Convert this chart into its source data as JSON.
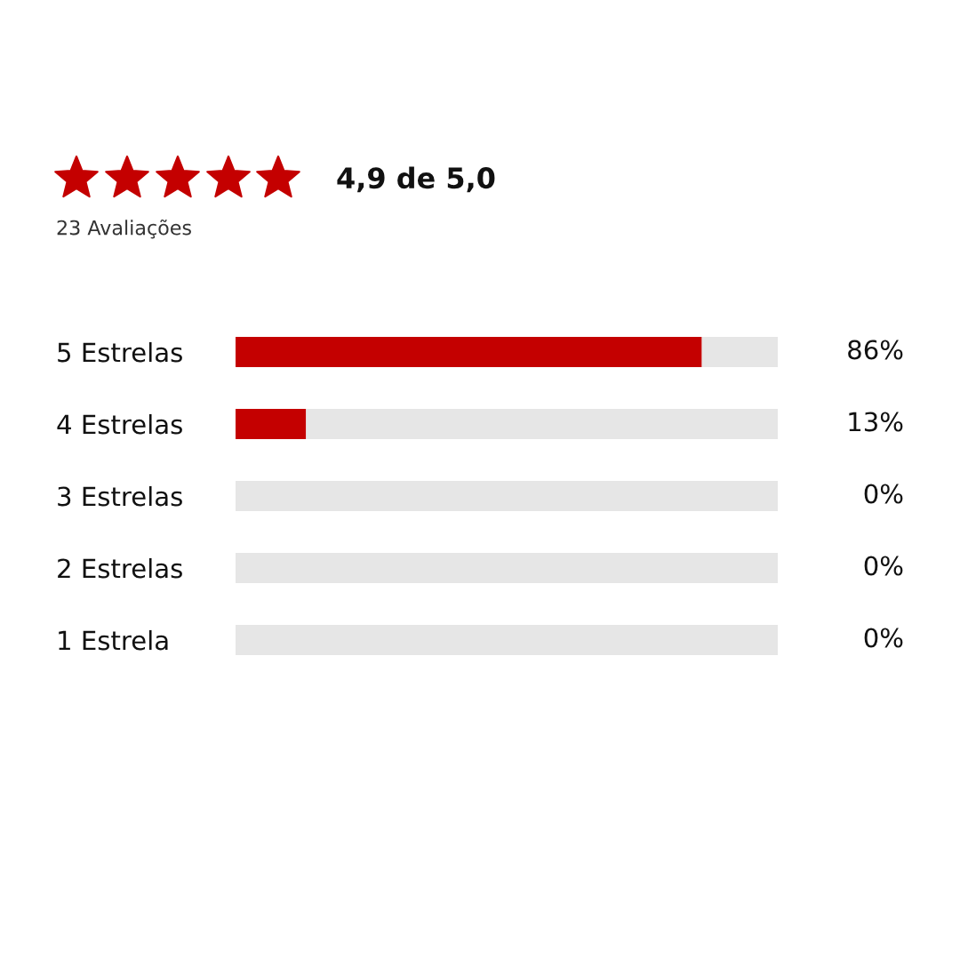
{
  "chart_data": {
    "type": "bar",
    "orientation": "horizontal",
    "stacked": true,
    "title": "4,9 de 5,0",
    "subtitle": "23 Avaliações",
    "categories": [
      "5 Estrelas",
      "4 Estrelas",
      "3 Estrelas",
      "2 Estrelas",
      "1 Estrela"
    ],
    "series": [
      {
        "color": "#c40000",
        "values": [
          86,
          13,
          0,
          0,
          0
        ],
        "value_labels": [
          "86%",
          "13%",
          "0%",
          "0%",
          "0%"
        ]
      },
      {
        "color": "#e6e6e6",
        "values": [
          14,
          87,
          100,
          100,
          100
        ]
      }
    ],
    "xlim": [
      0,
      100
    ],
    "tick_labels": "y",
    "grid": false
  }
}
